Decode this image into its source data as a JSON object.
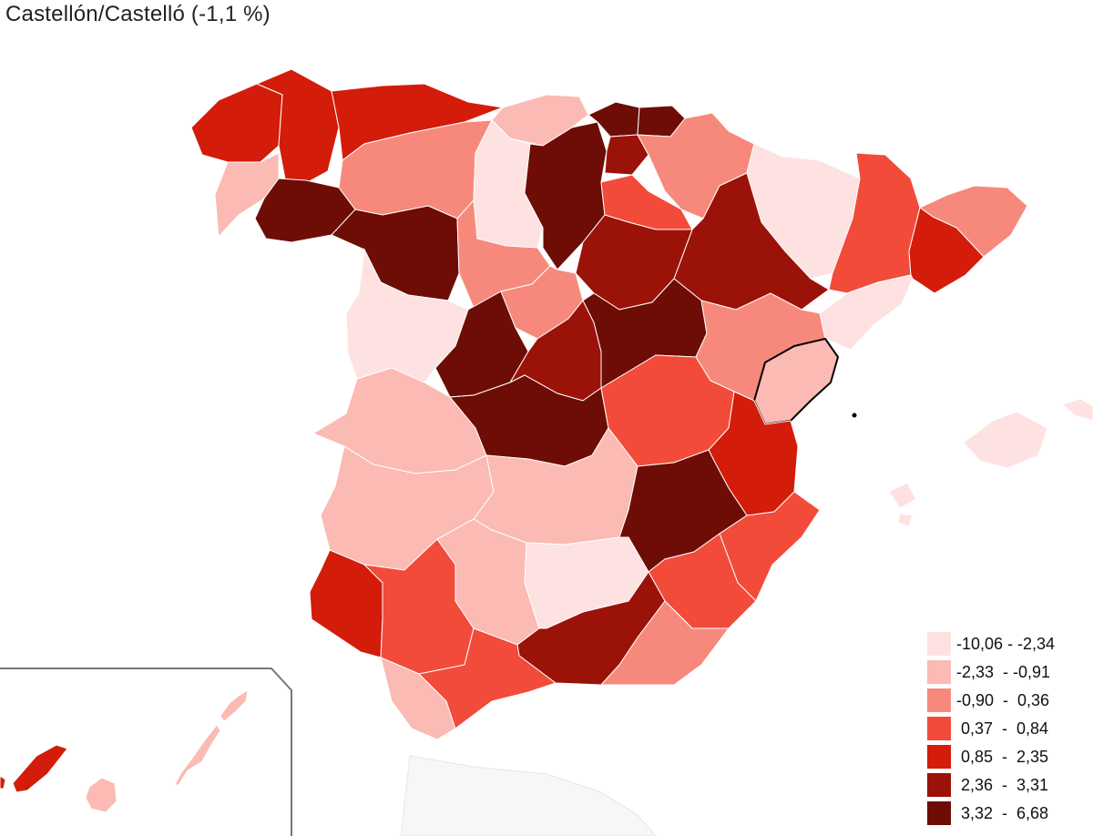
{
  "title": "Castellón/Castelló (-1,1 %)",
  "selected_region": "Castellón/Castelló",
  "selected_value": "-1,1 %",
  "legend": {
    "bins": [
      {
        "label": "-10,06 - -2,34",
        "color": "#fde2e1"
      },
      {
        "label": "-2,33  - -0,91",
        "color": "#fbbab3"
      },
      {
        "label": "-0,90  -  0,36",
        "color": "#f6897c"
      },
      {
        "label": " 0,37  -  0,84",
        "color": "#f24b3a"
      },
      {
        "label": " 0,85  -  2,35",
        "color": "#d41c0a"
      },
      {
        "label": " 2,36  -  3,31",
        "color": "#9b1308"
      },
      {
        "label": " 3,32  -  6,68",
        "color": "#6e0d05"
      }
    ]
  },
  "colors": {
    "border": "#ffffff",
    "highlight_border": "#000000",
    "inset_frame": "#777777"
  }
}
